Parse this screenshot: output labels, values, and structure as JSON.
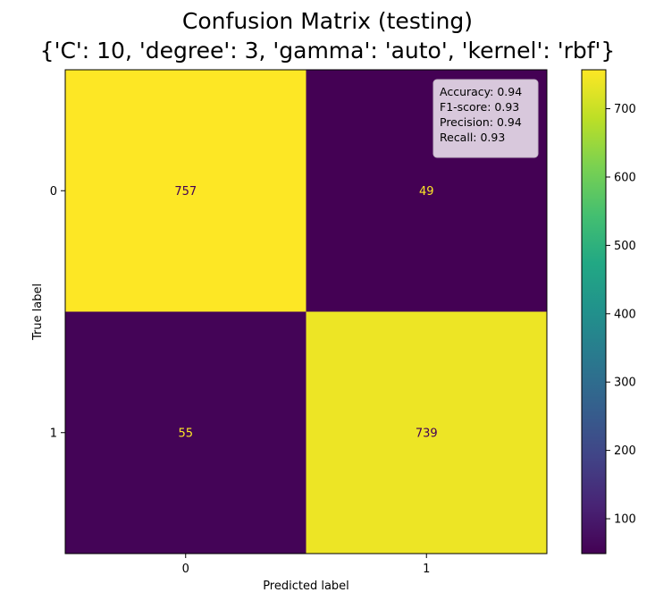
{
  "chart_data": {
    "type": "heatmap",
    "title_lines": [
      "Confusion Matrix (testing)",
      "{'C': 10, 'degree': 3, 'gamma': 'auto', 'kernel': 'rbf'}"
    ],
    "xlabel": "Predicted label",
    "ylabel": "True label",
    "x_categories": [
      "0",
      "1"
    ],
    "y_categories": [
      "0",
      "1"
    ],
    "matrix": [
      [
        757,
        49
      ],
      [
        55,
        739
      ]
    ],
    "colormap": "viridis",
    "colorbar": {
      "min": 49,
      "max": 757,
      "ticks": [
        100,
        200,
        300,
        400,
        500,
        600,
        700
      ],
      "tick_labels": [
        "100",
        "200",
        "300",
        "400",
        "500",
        "600",
        "700"
      ]
    },
    "metrics_box": {
      "lines": [
        "Accuracy: 0.94",
        "F1-score: 0.93",
        "Precision: 0.94",
        "Recall: 0.93"
      ],
      "placement": "top-right",
      "background": "#d8c8dc"
    },
    "text_color_on_dark": "#fde725",
    "text_color_on_light": "#440154"
  }
}
